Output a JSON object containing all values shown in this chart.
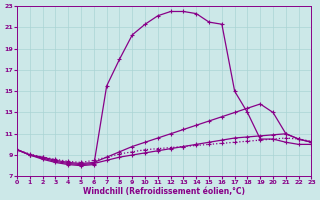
{
  "background_color": "#cce8e8",
  "grid_color": "#aad4d4",
  "line_color": "#880088",
  "xlabel": "Windchill (Refroidissement éolien,°C)",
  "xlim": [
    0,
    23
  ],
  "ylim": [
    7,
    23
  ],
  "xticks": [
    0,
    1,
    2,
    3,
    4,
    5,
    6,
    7,
    8,
    9,
    10,
    11,
    12,
    13,
    14,
    15,
    16,
    17,
    18,
    19,
    20,
    21,
    22,
    23
  ],
  "yticks": [
    7,
    9,
    11,
    13,
    15,
    17,
    19,
    21,
    23
  ],
  "series": [
    {
      "x": [
        0,
        1,
        2,
        3,
        4,
        5,
        6,
        7,
        8,
        9,
        10,
        11,
        12,
        13,
        14,
        15,
        16,
        17,
        18,
        19,
        20,
        21,
        22,
        23
      ],
      "y": [
        9.5,
        9.0,
        8.6,
        8.3,
        8.1,
        8.0,
        8.1,
        15.5,
        18.0,
        20.3,
        21.3,
        22.1,
        22.5,
        22.5,
        22.3,
        21.5,
        21.3,
        15.0,
        13.0,
        10.5,
        10.5,
        10.2,
        10.0,
        10.0
      ]
    },
    {
      "x": [
        0,
        1,
        2,
        3,
        4,
        5,
        6,
        7,
        8,
        9,
        10,
        11,
        12,
        13,
        14,
        15,
        16,
        17,
        18,
        19,
        20,
        21,
        22,
        23
      ],
      "y": [
        9.5,
        9.0,
        8.8,
        8.5,
        8.3,
        8.2,
        8.3,
        8.8,
        9.3,
        9.8,
        10.2,
        10.6,
        11.0,
        11.4,
        11.8,
        12.2,
        12.6,
        13.0,
        13.4,
        13.8,
        13.0,
        11.0,
        10.5,
        10.2
      ]
    },
    {
      "x": [
        0,
        1,
        2,
        3,
        4,
        5,
        6,
        7,
        8,
        9,
        10,
        11,
        12,
        13,
        14,
        15,
        16,
        17,
        18,
        19,
        20,
        21,
        22,
        23
      ],
      "y": [
        9.5,
        9.0,
        8.7,
        8.4,
        8.2,
        8.1,
        8.2,
        8.5,
        8.8,
        9.0,
        9.2,
        9.4,
        9.6,
        9.8,
        10.0,
        10.2,
        10.4,
        10.6,
        10.7,
        10.8,
        10.9,
        11.0,
        10.5,
        10.2
      ]
    },
    {
      "x": [
        0,
        1,
        2,
        3,
        4,
        5,
        6,
        7,
        8,
        9,
        10,
        11,
        12,
        13,
        14,
        15,
        16,
        17,
        18,
        19,
        20,
        21,
        22,
        23
      ],
      "y": [
        9.5,
        9.1,
        8.8,
        8.6,
        8.4,
        8.3,
        8.5,
        8.8,
        9.1,
        9.3,
        9.5,
        9.6,
        9.7,
        9.8,
        9.9,
        10.0,
        10.1,
        10.2,
        10.3,
        10.4,
        10.5,
        10.6,
        10.5,
        10.3
      ]
    }
  ],
  "line_styles": [
    "solid",
    "solid",
    "solid",
    "dotted"
  ]
}
